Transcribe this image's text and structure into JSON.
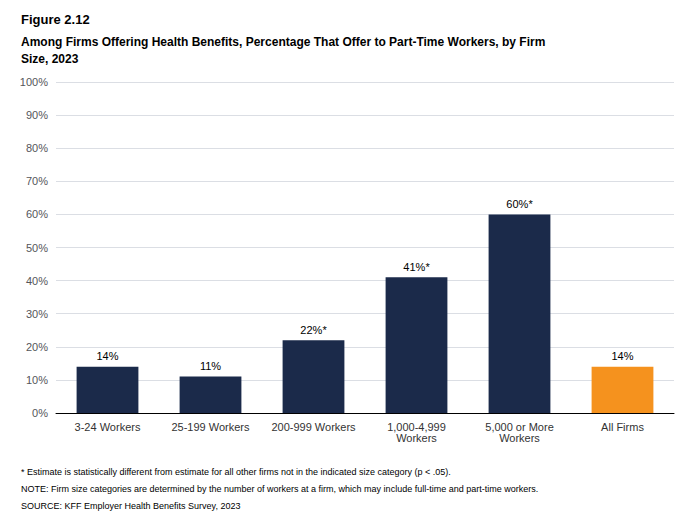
{
  "chart_data": {
    "type": "bar",
    "title": "Figure 2.12",
    "subtitle": "Among Firms Offering Health Benefits, Percentage That Offer to Part-Time Workers, by Firm\nSize, 2023",
    "categories": [
      "3-24 Workers",
      "25-199 Workers",
      "200-999 Workers",
      "1,000-4,999\nWorkers",
      "5,000 or More\nWorkers",
      "All Firms"
    ],
    "values": [
      14,
      11,
      22,
      41,
      60,
      14
    ],
    "value_labels": [
      "14%",
      "11%",
      "22%*",
      "41%*",
      "60%*",
      "14%"
    ],
    "colors": [
      "#1b2a4a",
      "#1b2a4a",
      "#1b2a4a",
      "#1b2a4a",
      "#1b2a4a",
      "#f5921e"
    ],
    "ylim": [
      0,
      100
    ],
    "yticks": [
      {
        "value": 0,
        "label": "0%"
      },
      {
        "value": 10,
        "label": "10%"
      },
      {
        "value": 20,
        "label": "20%"
      },
      {
        "value": 30,
        "label": "30%"
      },
      {
        "value": 40,
        "label": "40%"
      },
      {
        "value": 50,
        "label": "50%"
      },
      {
        "value": 60,
        "label": "60%"
      },
      {
        "value": 70,
        "label": "70%"
      },
      {
        "value": 80,
        "label": "80%"
      },
      {
        "value": 90,
        "label": "90%"
      },
      {
        "value": 100,
        "label": "100%"
      }
    ],
    "grid": true,
    "data_labels": true,
    "annotations": [
      "* Estimate is statistically different from estimate for all other firms not in the indicated size category (p < .05).",
      "NOTE: Firm size categories are determined by the number of workers at a firm, which may include full-time and part-time workers.",
      "SOURCE: KFF Employer Health Benefits Survey, 2023"
    ]
  }
}
